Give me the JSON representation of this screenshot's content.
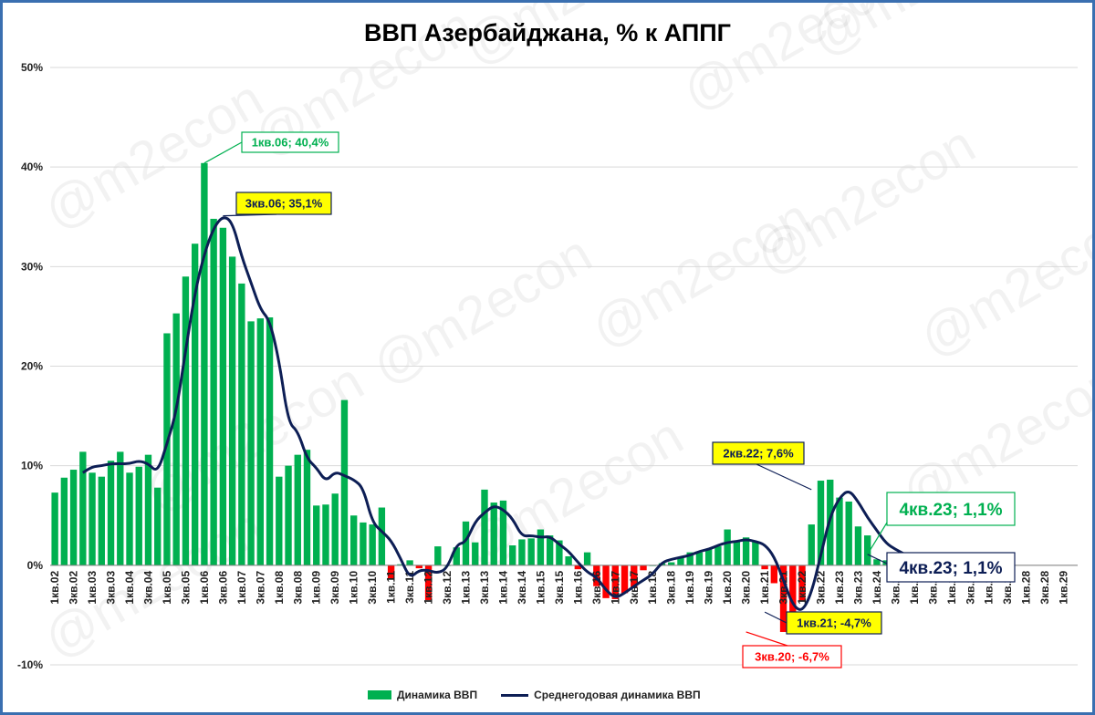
{
  "chart_data": {
    "type": "bar",
    "title": "ВВП Азербайджана, % к АППГ",
    "watermark": "@m2econ",
    "ylim": [
      -10,
      50
    ],
    "yticks": [
      -10,
      0,
      10,
      20,
      30,
      40,
      50
    ],
    "ytick_labels": [
      "-10%",
      "0%",
      "10%",
      "20%",
      "30%",
      "40%",
      "50%"
    ],
    "grid": true,
    "legend_position": "bottom",
    "x_tick_labels": [
      "1кв.02",
      "3кв.02",
      "1кв.03",
      "3кв.03",
      "1кв.04",
      "3кв.04",
      "1кв.05",
      "3кв.05",
      "1кв.06",
      "3кв.06",
      "1кв.07",
      "3кв.07",
      "1кв.08",
      "3кв.08",
      "1кв.09",
      "3кв.09",
      "1кв.10",
      "3кв.10",
      "1кв.11",
      "3кв.11",
      "1кв.12",
      "3кв.12",
      "1кв.13",
      "3кв.13",
      "1кв.14",
      "3кв.14",
      "1кв.15",
      "3кв.15",
      "1кв.16",
      "3кв.16",
      "1кв.17",
      "3кв.17",
      "1кв.18",
      "3кв.18",
      "1кв.19",
      "3кв.19",
      "1кв.20",
      "3кв.20",
      "1кв.21",
      "3кв.21",
      "1кв.22",
      "3кв.22",
      "1кв.23",
      "3кв.23",
      "1кв.24",
      "3кв.24",
      "1кв.25",
      "3кв.25",
      "1кв.26",
      "3кв.26",
      "1кв.27",
      "3кв.27",
      "1кв.28",
      "3кв.28",
      "1кв.29"
    ],
    "series": [
      {
        "name": "Динамика ВВП",
        "type": "bar",
        "color_positive": "#00b050",
        "color_negative": "#ff0000",
        "values": [
          7.3,
          8.8,
          9.6,
          11.4,
          9.3,
          8.9,
          10.5,
          11.4,
          9.3,
          9.9,
          11.1,
          7.8,
          23.3,
          25.3,
          29.0,
          32.3,
          40.4,
          34.8,
          33.9,
          31.0,
          28.3,
          24.5,
          24.8,
          24.9,
          8.9,
          10.0,
          11.1,
          11.6,
          6.0,
          6.1,
          7.2,
          16.6,
          5.0,
          4.3,
          4.1,
          5.8,
          -1.3,
          0.1,
          0.5,
          -0.3,
          -3.5,
          1.9,
          0.0,
          1.8,
          4.4,
          2.3,
          7.6,
          6.3,
          6.5,
          2.0,
          2.6,
          2.7,
          3.6,
          3.0,
          2.5,
          0.9,
          -0.4,
          1.3,
          -2.1,
          -3.3,
          -3.4,
          -2.8,
          -2.3,
          -0.5,
          0.0,
          0.2,
          0.3,
          0.8,
          1.3,
          1.3,
          1.6,
          1.9,
          3.6,
          2.4,
          2.8,
          2.4,
          -0.4,
          -1.8,
          -6.7,
          -6.3,
          -3.6,
          4.1,
          8.5,
          8.6,
          6.8,
          6.4,
          3.9,
          3.0,
          0.6,
          0.5,
          0.7,
          1.1
        ],
        "data_labels": [
          {
            "text": "1кв.06; 40,4%",
            "x": "1кв.06",
            "y": 40.4
          },
          {
            "text": "3кв.20; -6,7%",
            "x": "3кв.20",
            "y": -6.7
          },
          {
            "text": "4кв.23; 1,1%",
            "x": "4кв.23",
            "y": 1.1
          }
        ]
      },
      {
        "name": "Среднегодовая динамика ВВП",
        "type": "line",
        "color": "#0d1e55",
        "start_index": 3,
        "values": [
          9.3,
          9.9,
          10.0,
          10.2,
          10.2,
          10.2,
          10.5,
          10.2,
          9.3,
          12.2,
          15.4,
          21.6,
          27.4,
          31.3,
          33.9,
          35.1,
          34.5,
          31.0,
          28.4,
          25.7,
          24.6,
          20.6,
          14.3,
          13.5,
          10.7,
          9.8,
          8.4,
          9.4,
          9.0,
          8.6,
          7.8,
          4.3,
          3.4,
          2.5,
          0.7,
          -1.3,
          -0.5,
          -0.5,
          -0.8,
          -0.3,
          2.1,
          2.3,
          4.4,
          5.3,
          6.0,
          5.6,
          4.7,
          2.9,
          3.0,
          2.8,
          2.9,
          2.1,
          1.4,
          0.3,
          -0.7,
          -1.2,
          -2.5,
          -3.3,
          -2.8,
          -2.1,
          -1.5,
          -0.9,
          0.3,
          0.6,
          0.8,
          1.0,
          1.4,
          1.6,
          2.0,
          2.3,
          2.4,
          2.6,
          2.4,
          2.1,
          0.9,
          -1.5,
          -4.0,
          -4.7,
          -2.8,
          1.0,
          4.9,
          6.8,
          7.6,
          6.4,
          4.8,
          3.5,
          2.2,
          1.6,
          1.1
        ],
        "data_labels": [
          {
            "text": "3кв.06; 35,1%",
            "x": "3кв.06",
            "y": 35.1
          },
          {
            "text": "1кв.21; -4,7%",
            "x": "1кв.21",
            "y": -4.7
          },
          {
            "text": "2кв.22; 7,6%",
            "x": "2кв.22",
            "y": 7.6
          },
          {
            "text": "4кв.23; 1,1%",
            "x": "4кв.23",
            "y": 1.1
          }
        ]
      }
    ]
  },
  "legend": {
    "bar_label": "Динамика ВВП",
    "line_label": "Среднегодовая динамика ВВП"
  }
}
